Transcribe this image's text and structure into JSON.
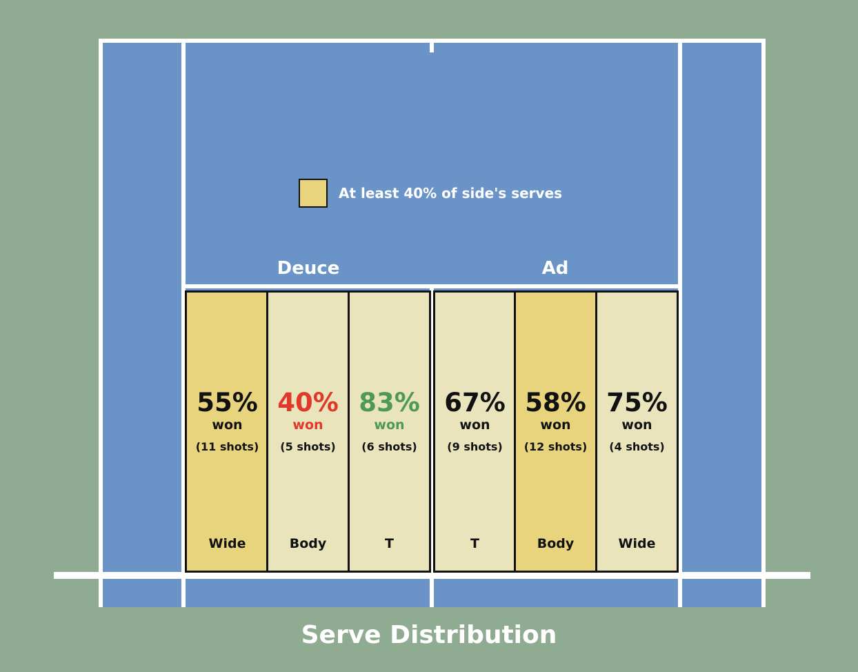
{
  "title": "Serve Distribution",
  "legend": {
    "label": "At least 40% of side's serves",
    "swatch_color": "#e8d47c"
  },
  "sides": [
    {
      "name": "Deuce"
    },
    {
      "name": "Ad"
    }
  ],
  "colors": {
    "background": "#8fab92",
    "court": "#6a93c8",
    "highlight": "#e8d47c",
    "normal": "#e9e4bc",
    "text_default": "#111111",
    "text_red": "#e0392b",
    "text_green": "#4e9a55"
  },
  "zones": [
    {
      "side": "Deuce",
      "direction": "Wide",
      "pct": "55%",
      "won": "won",
      "shots": "(11 shots)",
      "highlight": true,
      "text_color": "#111111"
    },
    {
      "side": "Deuce",
      "direction": "Body",
      "pct": "40%",
      "won": "won",
      "shots": "(5 shots)",
      "highlight": false,
      "text_color": "#e0392b"
    },
    {
      "side": "Deuce",
      "direction": "T",
      "pct": "83%",
      "won": "won",
      "shots": "(6 shots)",
      "highlight": false,
      "text_color": "#4e9a55"
    },
    {
      "side": "Ad",
      "direction": "T",
      "pct": "67%",
      "won": "won",
      "shots": "(9 shots)",
      "highlight": false,
      "text_color": "#111111"
    },
    {
      "side": "Ad",
      "direction": "Body",
      "pct": "58%",
      "won": "won",
      "shots": "(12 shots)",
      "highlight": true,
      "text_color": "#111111"
    },
    {
      "side": "Ad",
      "direction": "Wide",
      "pct": "75%",
      "won": "won",
      "shots": "(4 shots)",
      "highlight": false,
      "text_color": "#111111"
    }
  ]
}
